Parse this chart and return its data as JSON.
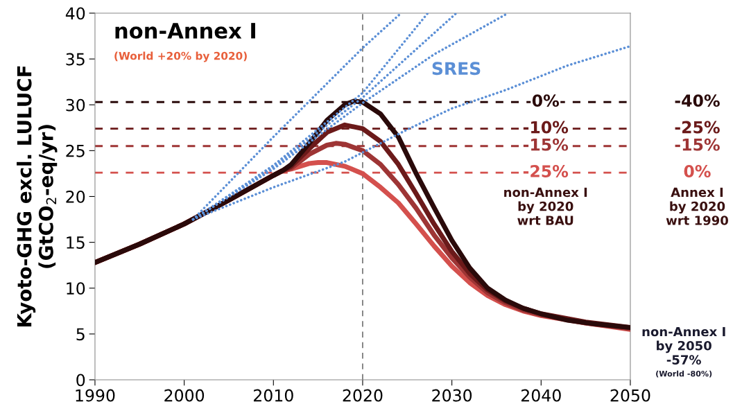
{
  "chart_data": {
    "type": "line",
    "title": "non-Annex I",
    "subtitle": "(World +20% by 2020)",
    "ylabel": "Kyoto-GHG excl. LULUCF\n(GtCO$_{2}$-eq/yr)",
    "xlim": [
      1990,
      2050
    ],
    "xticks": [
      1990,
      2000,
      2010,
      2020,
      2030,
      2040,
      2050
    ],
    "ylim": [
      0,
      40
    ],
    "yticks": [
      0,
      5,
      10,
      15,
      20,
      25,
      30,
      35,
      40
    ],
    "grid": false,
    "legend": false,
    "series": [
      {
        "color": "#5b8fd6",
        "line_style": "dotted",
        "x": [
          2001,
          2010,
          2020,
          2024.3
        ],
        "values": [
          17.5,
          26.5,
          36.2,
          40
        ]
      },
      {
        "color": "#5b8fd6",
        "line_style": "dotted",
        "x": [
          2001,
          2010,
          2020,
          2027.3
        ],
        "values": [
          17.5,
          23.4,
          31.3,
          40
        ]
      },
      {
        "color": "#5b8fd6",
        "line_style": "dotted",
        "x": [
          2001,
          2010,
          2020,
          2030.5
        ],
        "values": [
          17.5,
          23.2,
          30.8,
          40
        ]
      },
      {
        "color": "#5b8fd6",
        "line_style": "dotted",
        "x": [
          2001,
          2010,
          2020,
          2028,
          2036.3
        ],
        "values": [
          17.5,
          23,
          30.2,
          35.5,
          40
        ]
      },
      {
        "color": "#5b8fd6",
        "line_style": "dotted",
        "x": [
          2001,
          2010,
          2018,
          2025,
          2030,
          2036,
          2043,
          2050
        ],
        "values": [
          17.5,
          21,
          23.8,
          27.3,
          29.6,
          31.6,
          34.3,
          36.4
        ]
      },
      {
        "color": "#d4504d",
        "line_style": "solid",
        "x": [
          1990,
          1995,
          2000,
          2005,
          2010,
          2011,
          2012,
          2014,
          2015,
          2016,
          2018,
          2020,
          2022,
          2024,
          2026,
          2028,
          2030,
          2032,
          2034,
          2036,
          2038,
          2040,
          2045,
          2050
        ],
        "values": [
          12.8,
          14.8,
          17.0,
          19.6,
          22.3,
          22.8,
          23.0,
          23.6,
          23.7,
          23.7,
          23.3,
          22.5,
          21,
          19.3,
          17,
          14.6,
          12.4,
          10.6,
          9.2,
          8.2,
          7.5,
          7.0,
          6.2,
          5.5
        ]
      },
      {
        "color": "#9e3535",
        "line_style": "solid",
        "x": [
          1990,
          1995,
          2000,
          2005,
          2010,
          2011,
          2012,
          2014,
          2016,
          2017,
          2018,
          2020,
          2022,
          2024,
          2026,
          2028,
          2030,
          2032,
          2034,
          2036,
          2038,
          2040,
          2045,
          2050
        ],
        "values": [
          12.8,
          14.8,
          17.0,
          19.6,
          22.3,
          22.8,
          23.1,
          24.6,
          25.6,
          25.8,
          25.7,
          25.0,
          23.5,
          21.3,
          18.7,
          15.8,
          13.3,
          11.2,
          9.5,
          8.4,
          7.6,
          7.1,
          6.2,
          5.6
        ]
      },
      {
        "color": "#6b1a1a",
        "line_style": "solid",
        "x": [
          1990,
          1995,
          2000,
          2005,
          2010,
          2011,
          2012,
          2014,
          2016,
          2018,
          2020,
          2022,
          2024,
          2026,
          2028,
          2030,
          2032,
          2034,
          2036,
          2038,
          2040,
          2045,
          2050
        ],
        "values": [
          12.8,
          14.8,
          17.0,
          19.6,
          22.3,
          22.8,
          23.3,
          25.2,
          27.0,
          27.8,
          27.4,
          26,
          23.5,
          20.3,
          17,
          14,
          11.6,
          9.8,
          8.6,
          7.8,
          7.2,
          6.3,
          5.7
        ]
      },
      {
        "color": "#2a0a0a",
        "line_style": "solid",
        "x": [
          1990,
          1995,
          2000,
          2005,
          2010,
          2011,
          2012,
          2014,
          2016,
          2018,
          2019,
          2020,
          2022,
          2024,
          2026,
          2028,
          2030,
          2032,
          2034,
          2036,
          2038,
          2040,
          2043,
          2046,
          2050
        ],
        "values": [
          12.8,
          14.8,
          17.0,
          19.6,
          22.3,
          22.8,
          23.5,
          25.8,
          28.3,
          30.0,
          30.4,
          30.3,
          29.0,
          26.5,
          22.5,
          18.8,
          15.2,
          12.2,
          10.0,
          8.7,
          7.8,
          7.2,
          6.5,
          6.1,
          5.7
        ]
      }
    ],
    "ref_lines": [
      {
        "axis": "x",
        "value": 2020,
        "color": "#555555",
        "line_style": "dashed"
      },
      {
        "axis": "y",
        "value": 30.3,
        "color": "#2a0a0a",
        "line_style": "dashed"
      },
      {
        "axis": "y",
        "value": 27.4,
        "color": "#6b1a1a",
        "line_style": "dashed"
      },
      {
        "axis": "y",
        "value": 25.5,
        "color": "#9e3535",
        "line_style": "dashed"
      },
      {
        "axis": "y",
        "value": 22.6,
        "color": "#d4504d",
        "line_style": "dashed"
      }
    ],
    "annotations": [
      "0%",
      "-10%",
      "-15%",
      "-25%",
      "-40%",
      "-25%",
      "-15%",
      "0%",
      "SRES",
      "non-Annex I\nby 2020\nwrt BAU",
      "Annex I\nby 2020\nwrt 1990",
      "non-Annex I\nby 2050\n-57%",
      "(World -80%)"
    ]
  }
}
